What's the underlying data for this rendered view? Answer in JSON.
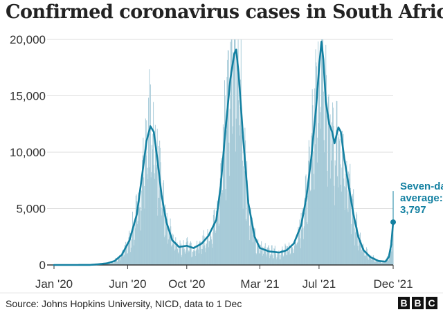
{
  "title": "Confirmed coronavirus cases in South Africa",
  "source": "Source: Johns Hopkins University, NICD, data to 1 Dec",
  "logo": "BBC",
  "annotation": {
    "label_lines": [
      "Seven-day",
      "average:",
      "3,797"
    ],
    "value": 3797
  },
  "colors": {
    "bars": "#a6cad8",
    "line": "#1380a1",
    "axis": "#333333",
    "grid": "#dddddd",
    "text": "#222222"
  },
  "chart_data": {
    "type": "bar",
    "title": "Confirmed coronavirus cases in South Africa",
    "xlabel": "",
    "ylabel": "",
    "ylim": [
      0,
      20000
    ],
    "xlim": [
      "2020-01-01",
      "2021-12-01"
    ],
    "y_ticks": [
      0,
      5000,
      10000,
      15000,
      20000
    ],
    "y_tick_labels": [
      "0",
      "5,000",
      "10,000",
      "15,000",
      "20,000"
    ],
    "x_ticks": [
      "2020-01-01",
      "2020-06-01",
      "2020-10-01",
      "2021-03-01",
      "2021-07-01",
      "2021-12-01"
    ],
    "x_tick_labels": [
      "Jan '20",
      "Jun '20",
      "Oct '20",
      "Mar '21",
      "Jul '21",
      "Dec '21"
    ],
    "grid": true,
    "series": [
      {
        "type": "line",
        "points": [
          [
            "2020-01-01",
            0
          ],
          [
            "2020-02-15",
            0
          ],
          [
            "2020-03-15",
            5
          ],
          [
            "2020-04-01",
            60
          ],
          [
            "2020-04-20",
            150
          ],
          [
            "2020-05-05",
            350
          ],
          [
            "2020-05-20",
            900
          ],
          [
            "2020-06-05",
            2200
          ],
          [
            "2020-06-20",
            4500
          ],
          [
            "2020-07-01",
            8000
          ],
          [
            "2020-07-10",
            11000
          ],
          [
            "2020-07-18",
            12300
          ],
          [
            "2020-07-25",
            11800
          ],
          [
            "2020-08-01",
            9500
          ],
          [
            "2020-08-10",
            6200
          ],
          [
            "2020-08-20",
            3800
          ],
          [
            "2020-09-01",
            2200
          ],
          [
            "2020-09-15",
            1600
          ],
          [
            "2020-10-01",
            1700
          ],
          [
            "2020-10-15",
            1500
          ],
          [
            "2020-11-01",
            1900
          ],
          [
            "2020-11-15",
            2600
          ],
          [
            "2020-12-01",
            4000
          ],
          [
            "2020-12-10",
            7000
          ],
          [
            "2020-12-20",
            12000
          ],
          [
            "2020-12-30",
            16500
          ],
          [
            "2021-01-07",
            18700
          ],
          [
            "2021-01-11",
            19100
          ],
          [
            "2021-01-16",
            17000
          ],
          [
            "2021-01-25",
            11500
          ],
          [
            "2021-02-05",
            5500
          ],
          [
            "2021-02-18",
            2500
          ],
          [
            "2021-03-01",
            1500
          ],
          [
            "2021-03-20",
            1200
          ],
          [
            "2021-04-10",
            1100
          ],
          [
            "2021-04-25",
            1300
          ],
          [
            "2021-05-10",
            1900
          ],
          [
            "2021-05-25",
            3500
          ],
          [
            "2021-06-05",
            6000
          ],
          [
            "2021-06-15",
            9500
          ],
          [
            "2021-06-25",
            14000
          ],
          [
            "2021-07-02",
            18000
          ],
          [
            "2021-07-06",
            19800
          ],
          [
            "2021-07-10",
            18200
          ],
          [
            "2021-07-15",
            14500
          ],
          [
            "2021-07-22",
            12500
          ],
          [
            "2021-07-28",
            11800
          ],
          [
            "2021-08-02",
            10800
          ],
          [
            "2021-08-06",
            11500
          ],
          [
            "2021-08-10",
            12200
          ],
          [
            "2021-08-15",
            11800
          ],
          [
            "2021-08-22",
            9500
          ],
          [
            "2021-09-01",
            6800
          ],
          [
            "2021-09-10",
            4500
          ],
          [
            "2021-09-20",
            2500
          ],
          [
            "2021-10-01",
            1300
          ],
          [
            "2021-10-15",
            700
          ],
          [
            "2021-11-01",
            350
          ],
          [
            "2021-11-15",
            300
          ],
          [
            "2021-11-22",
            700
          ],
          [
            "2021-11-27",
            1800
          ],
          [
            "2021-12-01",
            3797
          ]
        ]
      }
    ]
  }
}
